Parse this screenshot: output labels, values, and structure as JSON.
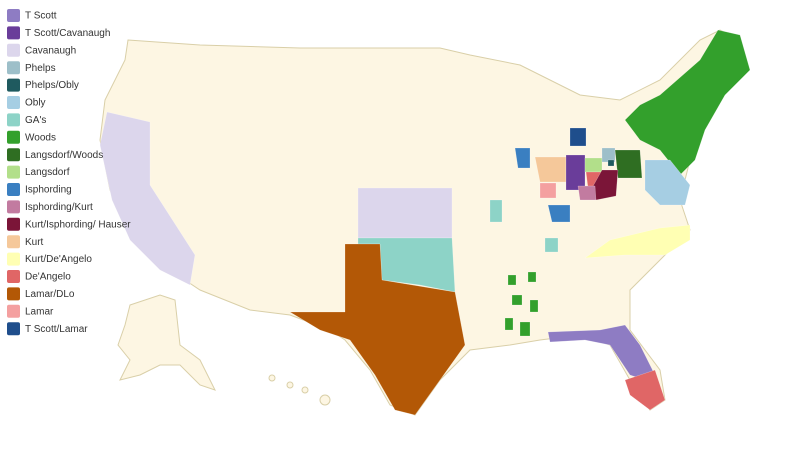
{
  "legend": [
    {
      "name": "T Scott",
      "color": "#8e7cc3"
    },
    {
      "name": "T Scott/Cavanaugh",
      "color": "#6a3d9a"
    },
    {
      "name": "Cavanaugh",
      "color": "#dcd6ec"
    },
    {
      "name": "Phelps",
      "color": "#9dbfc9"
    },
    {
      "name": "Phelps/Obly",
      "color": "#1f5a5f"
    },
    {
      "name": "Obly",
      "color": "#a6cee3"
    },
    {
      "name": "GA's",
      "color": "#8dd3c7"
    },
    {
      "name": "Woods",
      "color": "#33a02c"
    },
    {
      "name": "Langsdorf/Woods",
      "color": "#2f6e22"
    },
    {
      "name": "Langsdorf",
      "color": "#b2df8a"
    },
    {
      "name": "Isphording",
      "color": "#3a7fc1"
    },
    {
      "name": "Isphording/Kurt",
      "color": "#c27ba0"
    },
    {
      "name": "Kurt/Isphording/ Hauser",
      "color": "#7b1538"
    },
    {
      "name": "Kurt",
      "color": "#f5c89a"
    },
    {
      "name": "Kurt/De'Angelo",
      "color": "#ffffb3"
    },
    {
      "name": "De'Angelo",
      "color": "#e06666"
    },
    {
      "name": "Lamar/DLo",
      "color": "#b35806"
    },
    {
      "name": "Lamar",
      "color": "#f4a0a0"
    },
    {
      "name": "T Scott/Lamar",
      "color": "#1f4e8c"
    }
  ]
}
